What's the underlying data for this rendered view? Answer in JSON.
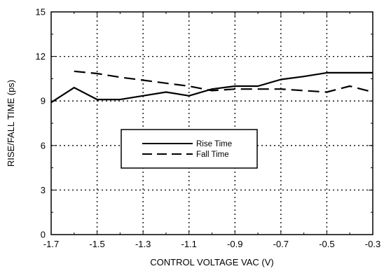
{
  "chart_data": {
    "type": "line",
    "title": "",
    "xlabel": "CONTROL VOLTAGE VAC (V)",
    "ylabel": "RISE/FALL TIME (ps)",
    "xlim": [
      -1.7,
      -0.3
    ],
    "ylim": [
      0,
      15
    ],
    "xticks": [
      -1.7,
      -1.5,
      -1.3,
      -1.1,
      -0.9,
      -0.7,
      -0.5,
      -0.3
    ],
    "xtick_labels": [
      "-1.7",
      "-1.5",
      "-1.3",
      "-1.1",
      "-0.9",
      "-0.7",
      "-0.5",
      "-0.3"
    ],
    "yticks": [
      0,
      3,
      6,
      9,
      12,
      15
    ],
    "ytick_labels": [
      "0",
      "3",
      "6",
      "9",
      "12",
      "15"
    ],
    "x_gridlines": [
      -1.5,
      -1.3,
      -1.1,
      -0.9,
      -0.7,
      -0.5
    ],
    "y_gridlines": [
      3,
      6,
      9,
      12
    ],
    "grid": true,
    "grid_style": "dotted",
    "legend_position": "center-left",
    "series": [
      {
        "name": "Rise Time",
        "style": "solid",
        "x": [
          -1.7,
          -1.6,
          -1.5,
          -1.4,
          -1.3,
          -1.2,
          -1.1,
          -1.0,
          -0.9,
          -0.8,
          -0.7,
          -0.6,
          -0.5,
          -0.4,
          -0.3
        ],
        "y": [
          8.9,
          9.9,
          9.1,
          9.1,
          9.35,
          9.6,
          9.35,
          9.8,
          10.0,
          10.0,
          10.45,
          10.65,
          10.9,
          10.9,
          10.9
        ]
      },
      {
        "name": "Fall Time",
        "style": "dashed",
        "x": [
          -1.6,
          -1.5,
          -1.4,
          -1.3,
          -1.2,
          -1.1,
          -1.0,
          -0.9,
          -0.8,
          -0.7,
          -0.6,
          -0.5,
          -0.4,
          -0.3
        ],
        "y": [
          11.0,
          10.85,
          10.6,
          10.4,
          10.2,
          10.0,
          9.7,
          9.8,
          9.8,
          9.8,
          9.7,
          9.6,
          10.0,
          9.6
        ]
      }
    ]
  }
}
